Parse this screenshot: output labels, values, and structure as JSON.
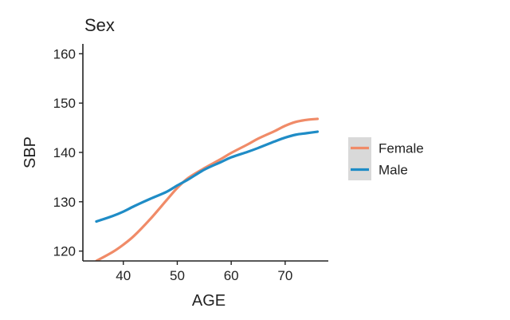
{
  "chart_data": {
    "type": "line",
    "title": "Sex",
    "xlabel": "AGE",
    "ylabel": "SBP",
    "xlim": [
      32.5,
      78
    ],
    "ylim": [
      118,
      162
    ],
    "xticks": [
      40,
      50,
      60,
      70
    ],
    "yticks": [
      120,
      130,
      140,
      150,
      160
    ],
    "grid": false,
    "legend_position": "right",
    "series": [
      {
        "name": "Female",
        "color": "#F08B68",
        "x": [
          35,
          38,
          40,
          42,
          45,
          48,
          50,
          52,
          55,
          58,
          60,
          63,
          65,
          68,
          70,
          72,
          74,
          76
        ],
        "y": [
          118.0,
          119.8,
          121.3,
          123.1,
          126.5,
          130.3,
          132.8,
          134.8,
          136.8,
          138.6,
          139.9,
          141.6,
          142.8,
          144.3,
          145.4,
          146.2,
          146.6,
          146.8
        ]
      },
      {
        "name": "Male",
        "color": "#1F8CC6",
        "x": [
          35,
          38,
          40,
          42,
          45,
          48,
          50,
          52,
          55,
          58,
          60,
          63,
          65,
          68,
          70,
          72,
          74,
          76
        ],
        "y": [
          126.0,
          127.1,
          128.0,
          129.1,
          130.6,
          132.0,
          133.3,
          134.5,
          136.5,
          138.0,
          139.0,
          140.1,
          140.9,
          142.2,
          143.0,
          143.6,
          143.9,
          144.2
        ]
      }
    ]
  }
}
